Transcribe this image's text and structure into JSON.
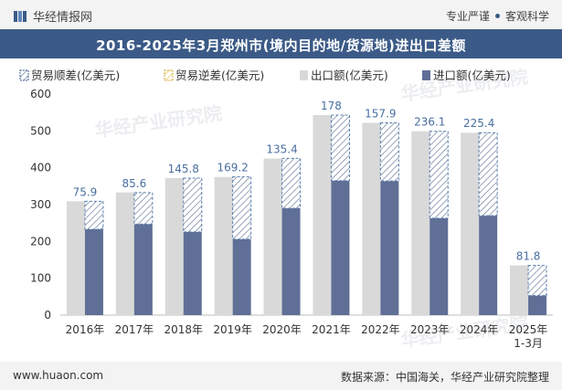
{
  "header": {
    "brand_name": "华经情报网",
    "tagline_left": "专业严谨",
    "tagline_right": "客观科学"
  },
  "title": "2016-2025年3月郑州市(境内目的地/货源地)进出口差额",
  "footer": {
    "website": "www.huaon.com",
    "source": "数据来源：中国海关，华经产业研究院整理"
  },
  "watermark": "华经产业研究院",
  "colors": {
    "header_bg": "#3b5a87",
    "surplus_hatch": "#5a7090",
    "export": "#d9d9d9",
    "import": "#5f6f96"
  },
  "chart_data": {
    "type": "bar",
    "categories": [
      "2016年",
      "2017年",
      "2018年",
      "2019年",
      "2020年",
      "2021年",
      "2022年",
      "2023年",
      "2024年",
      "2025年\n1-3月"
    ],
    "series": [
      {
        "name": "贸易顺差(亿美元)",
        "values": [
          75.9,
          85.6,
          145.8,
          169.2,
          135.4,
          178,
          157.9,
          236.1,
          225.4,
          81.8
        ],
        "labels": [
          "75.9",
          "85.6",
          "145.8",
          "169.2",
          "135.4",
          "178",
          "157.9",
          "236.1",
          "225.4",
          "81.8"
        ]
      },
      {
        "name": "贸易逆差(亿美元)",
        "values": [
          0,
          0,
          0,
          0,
          0,
          0,
          0,
          0,
          0,
          0
        ]
      },
      {
        "name": "出口额(亿美元)",
        "values": [
          309,
          333,
          372,
          375,
          425,
          543,
          522,
          499,
          495,
          135
        ]
      },
      {
        "name": "进口额(亿美元)",
        "values": [
          233,
          247,
          226,
          206,
          290,
          365,
          364,
          263,
          270,
          53
        ]
      }
    ],
    "ylim": [
      0,
      600
    ],
    "yticks": [
      0,
      100,
      200,
      300,
      400,
      500,
      600
    ],
    "legend_position": "top",
    "grid": false
  }
}
